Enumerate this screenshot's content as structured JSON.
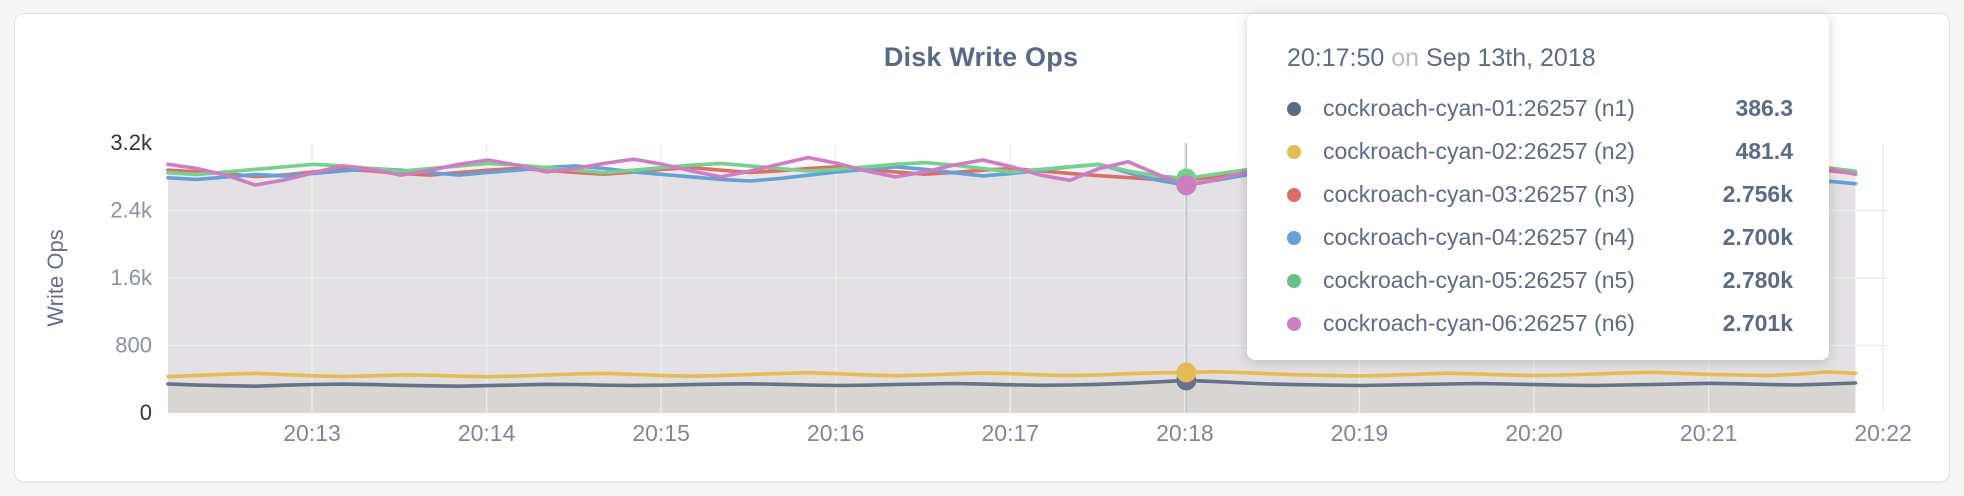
{
  "page": {
    "title": "Disk Write Ops",
    "background_color": "#f5f5f6",
    "panel_color": "#ffffff",
    "accent_text_color": "#5d6b85"
  },
  "y_axis": {
    "label": "Write Ops",
    "ticks": [
      {
        "label": "0",
        "value": 0,
        "emphasis": true
      },
      {
        "label": "800",
        "value": 800,
        "emphasis": false
      },
      {
        "label": "1.6k",
        "value": 1600,
        "emphasis": false
      },
      {
        "label": "2.4k",
        "value": 2400,
        "emphasis": false
      },
      {
        "label": "3.2k",
        "value": 3200,
        "emphasis": true
      }
    ]
  },
  "x_axis": {
    "ticks": [
      "20:13",
      "20:14",
      "20:15",
      "20:16",
      "20:17",
      "20:18",
      "20:19",
      "20:20",
      "20:21",
      "20:22"
    ]
  },
  "tooltip": {
    "time": "20:17:50",
    "conjunction": "on",
    "date": "Sep 13th, 2018",
    "rows": [
      {
        "label": "cockroach-cyan-01:26257 (n1)",
        "value": "386.3",
        "color": "#5b6b84"
      },
      {
        "label": "cockroach-cyan-02:26257 (n2)",
        "value": "481.4",
        "color": "#e5bb55"
      },
      {
        "label": "cockroach-cyan-03:26257 (n3)",
        "value": "2.756k",
        "color": "#db6f68"
      },
      {
        "label": "cockroach-cyan-04:26257 (n4)",
        "value": "2.700k",
        "color": "#66a1d6"
      },
      {
        "label": "cockroach-cyan-05:26257 (n5)",
        "value": "2.780k",
        "color": "#66c188"
      },
      {
        "label": "cockroach-cyan-06:26257 (n6)",
        "value": "2.701k",
        "color": "#cd7ec3"
      }
    ]
  },
  "chart_data": {
    "type": "line",
    "title": "Disk Write Ops",
    "xlabel": "",
    "ylabel": "Write Ops",
    "ylim": [
      0,
      3200
    ],
    "grid": true,
    "legend_position": "tooltip-overlay",
    "x_start": "20:12:10",
    "x_end": "20:21:50",
    "x_interval_seconds": 10,
    "x_tick_labels": [
      "20:13",
      "20:14",
      "20:15",
      "20:16",
      "20:17",
      "20:18",
      "20:19",
      "20:20",
      "20:21",
      "20:22"
    ],
    "hover": {
      "time": "20:17:50",
      "date": "Sep 13th, 2018",
      "index": 35,
      "values": [
        386.3,
        481.4,
        2756,
        2700,
        2780,
        2701
      ]
    },
    "series": [
      {
        "name": "cockroach-cyan-01:26257 (n1)",
        "node": "n1",
        "color": "#66728a",
        "values": [
          345,
          331,
          323,
          318,
          329,
          338,
          342,
          336,
          328,
          322,
          318,
          325,
          332,
          340,
          338,
          330,
          326,
          330,
          336,
          342,
          346,
          340,
          332,
          326,
          330,
          338,
          344,
          350,
          342,
          334,
          328,
          332,
          340,
          352,
          368,
          386.3,
          372,
          356,
          343,
          335,
          329,
          326,
          332,
          338,
          344,
          350,
          344,
          336,
          330,
          326,
          332,
          338,
          345,
          352,
          346,
          338,
          332,
          342,
          355
        ]
      },
      {
        "name": "cockroach-cyan-02:26257 (n2)",
        "node": "n2",
        "color": "#e5bb55",
        "values": [
          432,
          446,
          460,
          470,
          455,
          441,
          433,
          441,
          452,
          448,
          436,
          430,
          438,
          450,
          462,
          470,
          458,
          444,
          436,
          445,
          457,
          468,
          478,
          466,
          452,
          442,
          450,
          462,
          474,
          466,
          452,
          444,
          452,
          466,
          476,
          481.4,
          490,
          478,
          464,
          452,
          445,
          440,
          448,
          460,
          472,
          464,
          452,
          444,
          450,
          462,
          474,
          482,
          470,
          458,
          450,
          445,
          460,
          487,
          470
        ]
      },
      {
        "name": "cockroach-cyan-03:26257 (n3)",
        "node": "n3",
        "color": "#db6f68",
        "values": [
          2878,
          2858,
          2838,
          2802,
          2822,
          2858,
          2888,
          2868,
          2840,
          2820,
          2850,
          2878,
          2898,
          2878,
          2850,
          2830,
          2858,
          2888,
          2908,
          2878,
          2850,
          2870,
          2898,
          2918,
          2888,
          2858,
          2830,
          2850,
          2878,
          2898,
          2868,
          2840,
          2812,
          2790,
          2768,
          2756,
          2802,
          2842,
          2872,
          2890,
          2860,
          2832,
          2852,
          2880,
          2900,
          2870,
          2842,
          2862,
          2890,
          2908,
          2878,
          2850,
          2822,
          2842,
          2870,
          2898,
          2928,
          2878,
          2836
        ]
      },
      {
        "name": "cockroach-cyan-04:26257 (n4)",
        "node": "n4",
        "color": "#66a1d6",
        "values": [
          2788,
          2768,
          2798,
          2828,
          2808,
          2840,
          2868,
          2898,
          2878,
          2848,
          2820,
          2850,
          2878,
          2908,
          2928,
          2898,
          2858,
          2828,
          2798,
          2768,
          2750,
          2778,
          2818,
          2858,
          2888,
          2918,
          2888,
          2848,
          2810,
          2840,
          2878,
          2918,
          2948,
          2848,
          2760,
          2700,
          2758,
          2818,
          2868,
          2898,
          2868,
          2828,
          2800,
          2830,
          2868,
          2898,
          2928,
          2898,
          2858,
          2820,
          2850,
          2888,
          2918,
          2888,
          2848,
          2808,
          2778,
          2748,
          2718
        ]
      },
      {
        "name": "cockroach-cyan-05:26257 (n5)",
        "node": "n5",
        "color": "#77d08f",
        "values": [
          2848,
          2828,
          2858,
          2888,
          2918,
          2948,
          2928,
          2898,
          2868,
          2898,
          2928,
          2958,
          2938,
          2908,
          2878,
          2848,
          2878,
          2908,
          2938,
          2958,
          2928,
          2898,
          2868,
          2888,
          2918,
          2948,
          2968,
          2938,
          2898,
          2858,
          2888,
          2918,
          2948,
          2868,
          2810,
          2780,
          2832,
          2880,
          2920,
          2950,
          2920,
          2888,
          2858,
          2888,
          2918,
          2948,
          2978,
          2948,
          2908,
          2868,
          2898,
          2928,
          2958,
          2928,
          2888,
          2848,
          2878,
          2908,
          2866
        ]
      },
      {
        "name": "cockroach-cyan-06:26257 (n6)",
        "node": "n6",
        "color": "#cd7ec3",
        "values": [
          2948,
          2898,
          2818,
          2702,
          2762,
          2848,
          2928,
          2888,
          2820,
          2878,
          2948,
          2998,
          2938,
          2858,
          2898,
          2958,
          3008,
          2948,
          2868,
          2798,
          2868,
          2948,
          3028,
          2958,
          2868,
          2798,
          2858,
          2938,
          2998,
          2918,
          2818,
          2758,
          2898,
          2978,
          2830,
          2701,
          2762,
          2852,
          2948,
          3038,
          2958,
          2858,
          2788,
          2848,
          2928,
          2988,
          2898,
          2808,
          2758,
          2828,
          2908,
          2988,
          3058,
          2958,
          2848,
          2778,
          2838,
          2898,
          2830
        ]
      }
    ]
  }
}
